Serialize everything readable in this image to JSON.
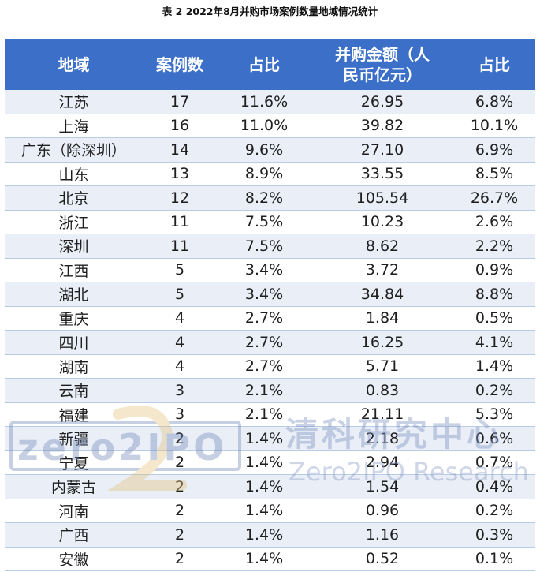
{
  "title": "表 2  2022年8月并购市场案例数量地域情况统计",
  "headers": {
    "region": "地域",
    "cases": "案例数",
    "share1": "占比",
    "amount_line1": "并购金额（人",
    "amount_line2": "民币亿元）",
    "share2": "占比"
  },
  "rows": [
    {
      "region": "江苏",
      "cases": "17",
      "share1": "11.6%",
      "amount": "26.95",
      "share2": "6.8%"
    },
    {
      "region": "上海",
      "cases": "16",
      "share1": "11.0%",
      "amount": "39.82",
      "share2": "10.1%"
    },
    {
      "region": "广东（除深圳）",
      "cases": "14",
      "share1": "9.6%",
      "amount": "27.10",
      "share2": "6.9%"
    },
    {
      "region": "山东",
      "cases": "13",
      "share1": "8.9%",
      "amount": "33.55",
      "share2": "8.5%"
    },
    {
      "region": "北京",
      "cases": "12",
      "share1": "8.2%",
      "amount": "105.54",
      "share2": "26.7%"
    },
    {
      "region": "浙江",
      "cases": "11",
      "share1": "7.5%",
      "amount": "10.23",
      "share2": "2.6%"
    },
    {
      "region": "深圳",
      "cases": "11",
      "share1": "7.5%",
      "amount": "8.62",
      "share2": "2.2%"
    },
    {
      "region": "江西",
      "cases": "5",
      "share1": "3.4%",
      "amount": "3.72",
      "share2": "0.9%"
    },
    {
      "region": "湖北",
      "cases": "5",
      "share1": "3.4%",
      "amount": "34.84",
      "share2": "8.8%"
    },
    {
      "region": "重庆",
      "cases": "4",
      "share1": "2.7%",
      "amount": "1.84",
      "share2": "0.5%"
    },
    {
      "region": "四川",
      "cases": "4",
      "share1": "2.7%",
      "amount": "16.25",
      "share2": "4.1%"
    },
    {
      "region": "湖南",
      "cases": "4",
      "share1": "2.7%",
      "amount": "5.71",
      "share2": "1.4%"
    },
    {
      "region": "云南",
      "cases": "3",
      "share1": "2.1%",
      "amount": "0.83",
      "share2": "0.2%"
    },
    {
      "region": "福建",
      "cases": "3",
      "share1": "2.1%",
      "amount": "21.11",
      "share2": "5.3%"
    },
    {
      "region": "新疆",
      "cases": "2",
      "share1": "1.4%",
      "amount": "2.18",
      "share2": "0.6%"
    },
    {
      "region": "宁夏",
      "cases": "2",
      "share1": "1.4%",
      "amount": "2.94",
      "share2": "0.7%"
    },
    {
      "region": "内蒙古",
      "cases": "2",
      "share1": "1.4%",
      "amount": "1.54",
      "share2": "0.4%"
    },
    {
      "region": "河南",
      "cases": "2",
      "share1": "1.4%",
      "amount": "0.96",
      "share2": "0.2%"
    },
    {
      "region": "广西",
      "cases": "2",
      "share1": "1.4%",
      "amount": "1.16",
      "share2": "0.3%"
    },
    {
      "region": "安徽",
      "cases": "2",
      "share1": "1.4%",
      "amount": "0.52",
      "share2": "0.1%"
    }
  ],
  "watermark": {
    "logo_text": "zero2IPO",
    "cn_name": "清科研究中心",
    "en_name": "Zero2IPO Research"
  }
}
